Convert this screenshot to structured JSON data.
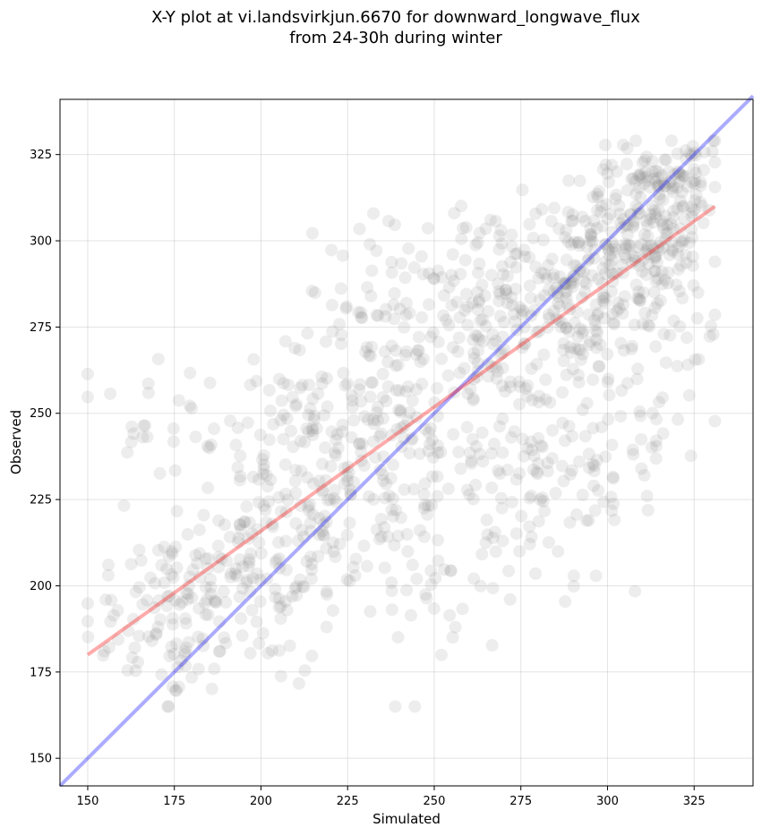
{
  "chart_data": {
    "type": "scatter",
    "title_line1": "X-Y plot at vi.landsvirkjun.6670 for downward_longwave_flux",
    "title_line2": "from 24-30h during winter",
    "xlabel": "Simulated",
    "ylabel": "Observed",
    "xlim": [
      142,
      342
    ],
    "ylim": [
      142,
      341
    ],
    "xticks": [
      150,
      175,
      200,
      225,
      250,
      275,
      300,
      325
    ],
    "yticks": [
      150,
      175,
      200,
      225,
      250,
      275,
      300,
      325
    ],
    "grid": true,
    "point_color": "#808080",
    "identity_line": {
      "color": "#0000ff",
      "x": [
        142,
        342
      ],
      "y": [
        142,
        342
      ]
    },
    "fit_line": {
      "color": "#ff0000",
      "x": [
        150,
        331
      ],
      "y": [
        180,
        310
      ]
    },
    "clusters": [
      {
        "cx": 172,
        "cy": 190,
        "sx": 12,
        "sy": 12,
        "n": 80
      },
      {
        "cx": 165,
        "cy": 250,
        "sx": 8,
        "sy": 10,
        "n": 18
      },
      {
        "cx": 195,
        "cy": 205,
        "sx": 14,
        "sy": 18,
        "n": 140
      },
      {
        "cx": 210,
        "cy": 245,
        "sx": 14,
        "sy": 14,
        "n": 80
      },
      {
        "cx": 225,
        "cy": 222,
        "sx": 15,
        "sy": 20,
        "n": 130
      },
      {
        "cx": 238,
        "cy": 272,
        "sx": 14,
        "sy": 17,
        "n": 80
      },
      {
        "cx": 252,
        "cy": 240,
        "sx": 15,
        "sy": 25,
        "n": 120
      },
      {
        "cx": 265,
        "cy": 282,
        "sx": 14,
        "sy": 15,
        "n": 100
      },
      {
        "cx": 275,
        "cy": 232,
        "sx": 12,
        "sy": 20,
        "n": 80
      },
      {
        "cx": 290,
        "cy": 285,
        "sx": 11,
        "sy": 14,
        "n": 160
      },
      {
        "cx": 310,
        "cy": 305,
        "sx": 9,
        "sy": 11,
        "n": 180
      },
      {
        "cx": 322,
        "cy": 318,
        "sx": 6,
        "sy": 8,
        "n": 60
      },
      {
        "cx": 300,
        "cy": 240,
        "sx": 12,
        "sy": 18,
        "n": 60
      },
      {
        "cx": 317,
        "cy": 275,
        "sx": 9,
        "sy": 14,
        "n": 50
      }
    ]
  }
}
